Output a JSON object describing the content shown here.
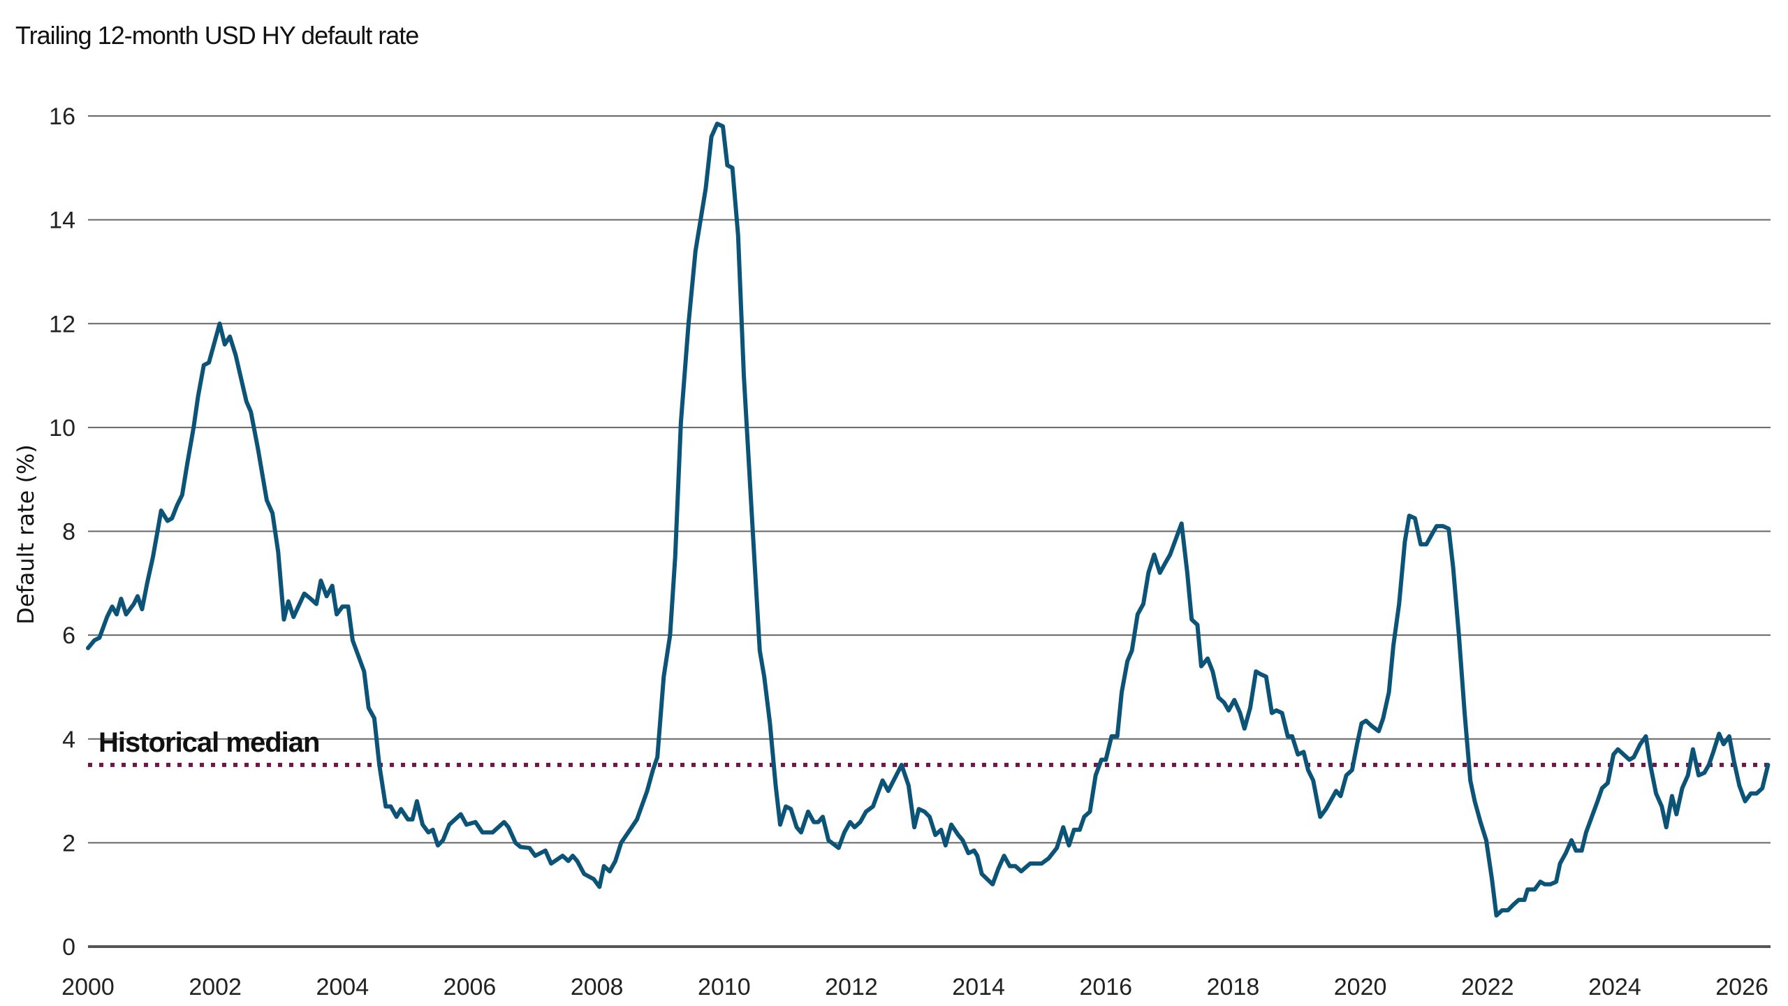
{
  "chart_data": {
    "type": "line",
    "title": "Trailing 12-month USD HY default rate",
    "xlabel": "",
    "ylabel": "Default rate (%)",
    "xlim": [
      2000,
      2026.45
    ],
    "ylim": [
      0,
      16
    ],
    "x_ticks": [
      "2000",
      "2002",
      "2004",
      "2006",
      "2008",
      "2010",
      "2012",
      "2014",
      "2016",
      "2018",
      "2020",
      "2022",
      "2024",
      "2026"
    ],
    "y_ticks": [
      "0",
      "2",
      "4",
      "6",
      "8",
      "10",
      "12",
      "14",
      "16"
    ],
    "grid": "horizontal",
    "colors": {
      "series": "#0b5377",
      "median": "#6a1845",
      "grid": "#666666",
      "axis": "#555555"
    },
    "annotations": [
      {
        "text": "Historical median",
        "type": "horizontal-dotted-line",
        "y": 3.5
      }
    ],
    "series": [
      {
        "points": [
          [
            2000.0,
            5.75
          ],
          [
            2000.1,
            5.9
          ],
          [
            2000.18,
            5.95
          ],
          [
            2000.3,
            6.35
          ],
          [
            2000.38,
            6.55
          ],
          [
            2000.45,
            6.4
          ],
          [
            2000.52,
            6.7
          ],
          [
            2000.6,
            6.4
          ],
          [
            2000.72,
            6.6
          ],
          [
            2000.78,
            6.75
          ],
          [
            2000.85,
            6.5
          ],
          [
            2000.93,
            7.0
          ],
          [
            2001.02,
            7.5
          ],
          [
            2001.1,
            8.05
          ],
          [
            2001.15,
            8.4
          ],
          [
            2001.25,
            8.2
          ],
          [
            2001.32,
            8.25
          ],
          [
            2001.4,
            8.5
          ],
          [
            2001.48,
            8.7
          ],
          [
            2001.56,
            9.3
          ],
          [
            2001.66,
            10.0
          ],
          [
            2001.73,
            10.6
          ],
          [
            2001.82,
            11.2
          ],
          [
            2001.9,
            11.25
          ],
          [
            2001.98,
            11.6
          ],
          [
            2002.07,
            12.0
          ],
          [
            2002.15,
            11.6
          ],
          [
            2002.23,
            11.75
          ],
          [
            2002.32,
            11.4
          ],
          [
            2002.49,
            10.5
          ],
          [
            2002.56,
            10.3
          ],
          [
            2002.67,
            9.6
          ],
          [
            2002.81,
            8.6
          ],
          [
            2002.9,
            8.35
          ],
          [
            2002.99,
            7.6
          ],
          [
            2003.08,
            6.3
          ],
          [
            2003.15,
            6.65
          ],
          [
            2003.23,
            6.35
          ],
          [
            2003.4,
            6.8
          ],
          [
            2003.5,
            6.7
          ],
          [
            2003.59,
            6.6
          ],
          [
            2003.66,
            7.05
          ],
          [
            2003.75,
            6.75
          ],
          [
            2003.84,
            6.95
          ],
          [
            2003.91,
            6.4
          ],
          [
            2004.0,
            6.55
          ],
          [
            2004.09,
            6.55
          ],
          [
            2004.16,
            5.9
          ],
          [
            2004.34,
            5.3
          ],
          [
            2004.41,
            4.6
          ],
          [
            2004.5,
            4.4
          ],
          [
            2004.58,
            3.5
          ],
          [
            2004.68,
            2.7
          ],
          [
            2004.76,
            2.7
          ],
          [
            2004.85,
            2.5
          ],
          [
            2004.92,
            2.65
          ],
          [
            2005.03,
            2.45
          ],
          [
            2005.1,
            2.45
          ],
          [
            2005.17,
            2.8
          ],
          [
            2005.26,
            2.35
          ],
          [
            2005.35,
            2.2
          ],
          [
            2005.42,
            2.25
          ],
          [
            2005.5,
            1.95
          ],
          [
            2005.58,
            2.05
          ],
          [
            2005.68,
            2.35
          ],
          [
            2005.86,
            2.55
          ],
          [
            2005.95,
            2.35
          ],
          [
            2006.09,
            2.4
          ],
          [
            2006.2,
            2.2
          ],
          [
            2006.36,
            2.2
          ],
          [
            2006.54,
            2.4
          ],
          [
            2006.61,
            2.3
          ],
          [
            2006.72,
            2.0
          ],
          [
            2006.8,
            1.92
          ],
          [
            2006.94,
            1.9
          ],
          [
            2007.03,
            1.75
          ],
          [
            2007.19,
            1.85
          ],
          [
            2007.28,
            1.6
          ],
          [
            2007.46,
            1.75
          ],
          [
            2007.55,
            1.65
          ],
          [
            2007.62,
            1.75
          ],
          [
            2007.69,
            1.65
          ],
          [
            2007.8,
            1.4
          ],
          [
            2007.95,
            1.3
          ],
          [
            2008.04,
            1.15
          ],
          [
            2008.11,
            1.55
          ],
          [
            2008.2,
            1.45
          ],
          [
            2008.29,
            1.65
          ],
          [
            2008.38,
            2.0
          ],
          [
            2008.52,
            2.25
          ],
          [
            2008.63,
            2.45
          ],
          [
            2008.79,
            3.0
          ],
          [
            2008.88,
            3.4
          ],
          [
            2008.95,
            3.65
          ],
          [
            2009.05,
            5.2
          ],
          [
            2009.15,
            6.0
          ],
          [
            2009.23,
            7.5
          ],
          [
            2009.32,
            10.1
          ],
          [
            2009.44,
            12.0
          ],
          [
            2009.55,
            13.4
          ],
          [
            2009.63,
            14.0
          ],
          [
            2009.71,
            14.6
          ],
          [
            2009.8,
            15.6
          ],
          [
            2009.89,
            15.85
          ],
          [
            2009.98,
            15.8
          ],
          [
            2010.05,
            15.05
          ],
          [
            2010.13,
            15.0
          ],
          [
            2010.22,
            13.7
          ],
          [
            2010.31,
            11.0
          ],
          [
            2010.45,
            8.0
          ],
          [
            2010.56,
            5.7
          ],
          [
            2010.63,
            5.2
          ],
          [
            2010.72,
            4.3
          ],
          [
            2010.81,
            3.1
          ],
          [
            2010.88,
            2.35
          ],
          [
            2010.97,
            2.7
          ],
          [
            2011.05,
            2.65
          ],
          [
            2011.14,
            2.3
          ],
          [
            2011.21,
            2.2
          ],
          [
            2011.32,
            2.6
          ],
          [
            2011.41,
            2.4
          ],
          [
            2011.48,
            2.4
          ],
          [
            2011.55,
            2.5
          ],
          [
            2011.64,
            2.05
          ],
          [
            2011.8,
            1.9
          ],
          [
            2011.89,
            2.2
          ],
          [
            2011.98,
            2.4
          ],
          [
            2012.05,
            2.3
          ],
          [
            2012.14,
            2.4
          ],
          [
            2012.23,
            2.6
          ],
          [
            2012.34,
            2.7
          ],
          [
            2012.49,
            3.2
          ],
          [
            2012.58,
            3.0
          ],
          [
            2012.79,
            3.5
          ],
          [
            2012.9,
            3.1
          ],
          [
            2012.99,
            2.3
          ],
          [
            2013.06,
            2.65
          ],
          [
            2013.15,
            2.6
          ],
          [
            2013.23,
            2.5
          ],
          [
            2013.32,
            2.15
          ],
          [
            2013.41,
            2.25
          ],
          [
            2013.48,
            1.95
          ],
          [
            2013.57,
            2.35
          ],
          [
            2013.68,
            2.15
          ],
          [
            2013.75,
            2.05
          ],
          [
            2013.84,
            1.8
          ],
          [
            2013.93,
            1.85
          ],
          [
            2013.98,
            1.75
          ],
          [
            2014.05,
            1.4
          ],
          [
            2014.22,
            1.2
          ],
          [
            2014.31,
            1.5
          ],
          [
            2014.4,
            1.75
          ],
          [
            2014.49,
            1.55
          ],
          [
            2014.58,
            1.55
          ],
          [
            2014.67,
            1.45
          ],
          [
            2014.81,
            1.6
          ],
          [
            2014.99,
            1.6
          ],
          [
            2015.1,
            1.7
          ],
          [
            2015.23,
            1.9
          ],
          [
            2015.33,
            2.3
          ],
          [
            2015.42,
            1.95
          ],
          [
            2015.5,
            2.25
          ],
          [
            2015.59,
            2.25
          ],
          [
            2015.66,
            2.5
          ],
          [
            2015.75,
            2.6
          ],
          [
            2015.84,
            3.3
          ],
          [
            2015.93,
            3.6
          ],
          [
            2016.0,
            3.6
          ],
          [
            2016.09,
            4.05
          ],
          [
            2016.18,
            4.05
          ],
          [
            2016.25,
            4.9
          ],
          [
            2016.34,
            5.5
          ],
          [
            2016.41,
            5.7
          ],
          [
            2016.5,
            6.4
          ],
          [
            2016.59,
            6.6
          ],
          [
            2016.67,
            7.2
          ],
          [
            2016.76,
            7.55
          ],
          [
            2016.85,
            7.2
          ],
          [
            2016.94,
            7.4
          ],
          [
            2017.01,
            7.55
          ],
          [
            2017.1,
            7.85
          ],
          [
            2017.19,
            8.15
          ],
          [
            2017.28,
            7.2
          ],
          [
            2017.35,
            6.3
          ],
          [
            2017.44,
            6.2
          ],
          [
            2017.5,
            5.4
          ],
          [
            2017.6,
            5.55
          ],
          [
            2017.68,
            5.3
          ],
          [
            2017.77,
            4.8
          ],
          [
            2017.86,
            4.7
          ],
          [
            2017.93,
            4.55
          ],
          [
            2018.02,
            4.75
          ],
          [
            2018.11,
            4.5
          ],
          [
            2018.18,
            4.2
          ],
          [
            2018.27,
            4.6
          ],
          [
            2018.36,
            5.3
          ],
          [
            2018.43,
            5.25
          ],
          [
            2018.52,
            5.2
          ],
          [
            2018.61,
            4.5
          ],
          [
            2018.68,
            4.55
          ],
          [
            2018.77,
            4.5
          ],
          [
            2018.86,
            4.05
          ],
          [
            2018.93,
            4.05
          ],
          [
            2019.02,
            3.7
          ],
          [
            2019.11,
            3.75
          ],
          [
            2019.18,
            3.4
          ],
          [
            2019.26,
            3.2
          ],
          [
            2019.37,
            2.5
          ],
          [
            2019.46,
            2.65
          ],
          [
            2019.53,
            2.8
          ],
          [
            2019.62,
            3.0
          ],
          [
            2019.69,
            2.9
          ],
          [
            2019.78,
            3.3
          ],
          [
            2019.87,
            3.4
          ],
          [
            2019.95,
            3.9
          ],
          [
            2020.02,
            4.3
          ],
          [
            2020.09,
            4.35
          ],
          [
            2020.18,
            4.25
          ],
          [
            2020.29,
            4.15
          ],
          [
            2020.36,
            4.4
          ],
          [
            2020.45,
            4.9
          ],
          [
            2020.52,
            5.8
          ],
          [
            2020.61,
            6.6
          ],
          [
            2020.7,
            7.8
          ],
          [
            2020.77,
            8.3
          ],
          [
            2020.86,
            8.25
          ],
          [
            2020.95,
            7.75
          ],
          [
            2021.04,
            7.75
          ],
          [
            2021.13,
            7.95
          ],
          [
            2021.2,
            8.1
          ],
          [
            2021.3,
            8.1
          ],
          [
            2021.39,
            8.05
          ],
          [
            2021.46,
            7.3
          ],
          [
            2021.55,
            6.0
          ],
          [
            2021.64,
            4.5
          ],
          [
            2021.73,
            3.2
          ],
          [
            2021.8,
            2.8
          ],
          [
            2021.89,
            2.4
          ],
          [
            2021.98,
            2.05
          ],
          [
            2022.07,
            1.3
          ],
          [
            2022.14,
            0.6
          ],
          [
            2022.23,
            0.7
          ],
          [
            2022.32,
            0.7
          ],
          [
            2022.4,
            0.8
          ],
          [
            2022.49,
            0.9
          ],
          [
            2022.58,
            0.9
          ],
          [
            2022.63,
            1.1
          ],
          [
            2022.74,
            1.1
          ],
          [
            2022.83,
            1.25
          ],
          [
            2022.9,
            1.2
          ],
          [
            2022.99,
            1.2
          ],
          [
            2023.08,
            1.25
          ],
          [
            2023.14,
            1.6
          ],
          [
            2023.23,
            1.8
          ],
          [
            2023.32,
            2.05
          ],
          [
            2023.39,
            1.85
          ],
          [
            2023.48,
            1.85
          ],
          [
            2023.55,
            2.2
          ],
          [
            2023.64,
            2.5
          ],
          [
            2023.73,
            2.8
          ],
          [
            2023.8,
            3.05
          ],
          [
            2023.89,
            3.15
          ],
          [
            2023.98,
            3.7
          ],
          [
            2024.05,
            3.8
          ],
          [
            2024.14,
            3.7
          ],
          [
            2024.23,
            3.6
          ],
          [
            2024.3,
            3.65
          ],
          [
            2024.4,
            3.9
          ],
          [
            2024.49,
            4.05
          ],
          [
            2024.56,
            3.5
          ],
          [
            2024.65,
            2.95
          ],
          [
            2024.74,
            2.7
          ],
          [
            2024.81,
            2.3
          ],
          [
            2024.9,
            2.9
          ],
          [
            2024.97,
            2.55
          ],
          [
            2025.06,
            3.05
          ],
          [
            2025.15,
            3.3
          ],
          [
            2025.23,
            3.8
          ],
          [
            2025.32,
            3.3
          ],
          [
            2025.41,
            3.35
          ],
          [
            2025.48,
            3.5
          ],
          [
            2025.55,
            3.75
          ],
          [
            2025.64,
            4.1
          ],
          [
            2025.71,
            3.9
          ],
          [
            2025.8,
            4.05
          ],
          [
            2025.87,
            3.6
          ],
          [
            2025.96,
            3.1
          ],
          [
            2026.05,
            2.8
          ],
          [
            2026.14,
            2.95
          ],
          [
            2026.23,
            2.95
          ],
          [
            2026.32,
            3.05
          ],
          [
            2026.41,
            3.5
          ]
        ]
      }
    ]
  }
}
